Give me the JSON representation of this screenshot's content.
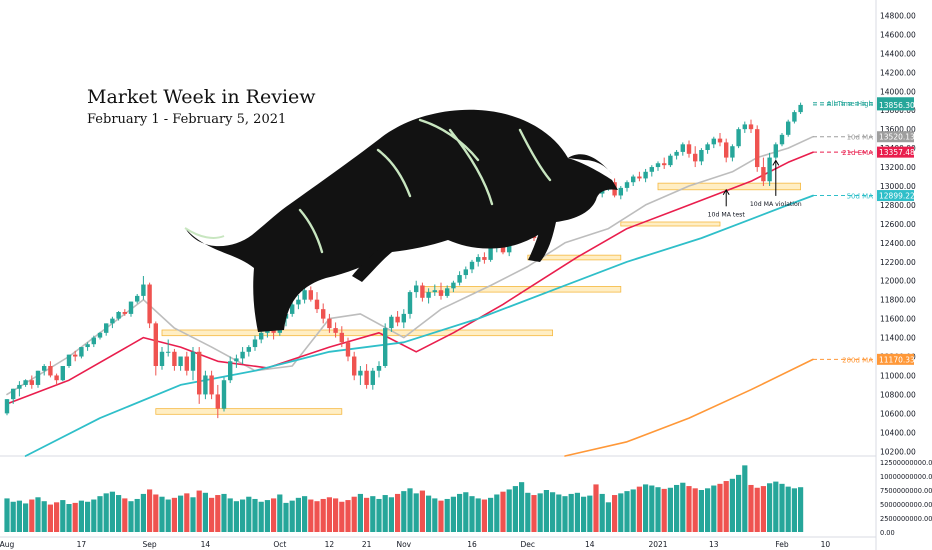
{
  "headline": {
    "title": "Market Week in Review",
    "subtitle": "February 1 - February 5, 2021"
  },
  "chart_data": {
    "type": "candlestick",
    "price_axis": {
      "ticks": [
        "14800.00",
        "14600.00",
        "14400.00",
        "14200.00",
        "14000.00",
        "13800.00",
        "13600.00",
        "13400.00",
        "13200.00",
        "13000.00",
        "12800.00",
        "12600.00",
        "12400.00",
        "12200.00",
        "12000.00",
        "11800.00",
        "11600.00",
        "11400.00",
        "11200.00",
        "11000.00",
        "10800.00",
        "10600.00",
        "10400.00",
        "10200.00"
      ],
      "range": [
        10150,
        14900
      ]
    },
    "volume_axis": {
      "ticks": [
        "12500000000.00",
        "10000000000.00",
        "7500000000.00",
        "5000000000.00",
        "2500000000.00",
        "0.00"
      ],
      "range": [
        0,
        12500000000
      ]
    },
    "time_axis": {
      "labels": [
        "Aug",
        "17",
        "Sep",
        "14",
        "Oct",
        "12",
        "21",
        "Nov",
        "16",
        "Dec",
        "14",
        "2021",
        "13",
        "Feb",
        "10"
      ],
      "label_index": [
        0,
        12,
        23,
        32,
        44,
        52,
        58,
        64,
        75,
        84,
        94,
        105,
        114,
        125,
        132
      ]
    },
    "markers": [
      {
        "label": "All Time High",
        "value": 13878.61,
        "value_text": "13878.61",
        "color": "#26a69a"
      },
      {
        "label": "",
        "value": 13856.3,
        "value_text": "13856.30",
        "color": "#26a69a"
      },
      {
        "label": "10d MA",
        "value": 13520.13,
        "value_text": "13520.13",
        "color": "#9e9e9e"
      },
      {
        "label": "21d EMA",
        "value": 13357.48,
        "value_text": "13357.48",
        "color": "#e91e4d"
      },
      {
        "label": "50d MA",
        "value": 12899.22,
        "value_text": "12899.22",
        "color": "#2fbfc9"
      },
      {
        "label": "200d MA",
        "value": 11170.33,
        "value_text": "11170.33",
        "color": "#ff9838"
      }
    ],
    "annotations": [
      "10d MA test",
      "10d MA violation"
    ],
    "zones": [
      {
        "from": 10590,
        "to": 10650,
        "start": 24,
        "end": 54
      },
      {
        "from": 11420,
        "to": 11480,
        "start": 25,
        "end": 88
      },
      {
        "from": 11880,
        "to": 11940,
        "start": 67,
        "end": 99
      },
      {
        "from": 12220,
        "to": 12270,
        "start": 84,
        "end": 99
      },
      {
        "from": 12580,
        "to": 12620,
        "start": 99,
        "end": 115
      },
      {
        "from": 12960,
        "to": 13030,
        "start": 105,
        "end": 128
      }
    ],
    "series": [
      {
        "name": "10d MA",
        "color": "#bdbdbd",
        "values": [
          [
            0,
            10800
          ],
          [
            10,
            11200
          ],
          [
            22,
            11800
          ],
          [
            27,
            11500
          ],
          [
            33,
            11300
          ],
          [
            40,
            11050
          ],
          [
            46,
            11100
          ],
          [
            52,
            11600
          ],
          [
            57,
            11650
          ],
          [
            64,
            11400
          ],
          [
            70,
            11700
          ],
          [
            78,
            11950
          ],
          [
            84,
            12150
          ],
          [
            90,
            12400
          ],
          [
            97,
            12550
          ],
          [
            103,
            12800
          ],
          [
            110,
            13000
          ],
          [
            117,
            13150
          ],
          [
            121,
            13300
          ],
          [
            126,
            13400
          ],
          [
            130,
            13520
          ]
        ]
      },
      {
        "name": "21d EMA",
        "color": "#e91e4d",
        "values": [
          [
            0,
            10700
          ],
          [
            10,
            10950
          ],
          [
            22,
            11400
          ],
          [
            28,
            11300
          ],
          [
            34,
            11150
          ],
          [
            42,
            11080
          ],
          [
            52,
            11300
          ],
          [
            60,
            11450
          ],
          [
            66,
            11250
          ],
          [
            72,
            11450
          ],
          [
            80,
            11750
          ],
          [
            86,
            12000
          ],
          [
            92,
            12250
          ],
          [
            100,
            12550
          ],
          [
            108,
            12750
          ],
          [
            114,
            12900
          ],
          [
            120,
            13050
          ],
          [
            126,
            13250
          ],
          [
            130,
            13357
          ]
        ]
      },
      {
        "name": "50d MA",
        "color": "#2fbfc9",
        "values": [
          [
            3,
            10150
          ],
          [
            15,
            10550
          ],
          [
            28,
            10900
          ],
          [
            40,
            11050
          ],
          [
            52,
            11250
          ],
          [
            64,
            11350
          ],
          [
            76,
            11600
          ],
          [
            88,
            11900
          ],
          [
            100,
            12200
          ],
          [
            112,
            12450
          ],
          [
            120,
            12650
          ],
          [
            126,
            12800
          ],
          [
            130,
            12899
          ]
        ]
      },
      {
        "name": "200d MA",
        "color": "#ff9838",
        "values": [
          [
            90,
            10150
          ],
          [
            100,
            10300
          ],
          [
            110,
            10550
          ],
          [
            120,
            10850
          ],
          [
            130,
            11170
          ]
        ]
      }
    ],
    "candles": [
      [
        0,
        10600,
        10750,
        10580,
        10750
      ],
      [
        1,
        10750,
        10860,
        10700,
        10860
      ],
      [
        2,
        10860,
        10940,
        10780,
        10900
      ],
      [
        3,
        10900,
        10960,
        10880,
        10950
      ],
      [
        4,
        10950,
        11000,
        10860,
        10900
      ],
      [
        5,
        10900,
        11050,
        10870,
        11050
      ],
      [
        6,
        11050,
        11120,
        11000,
        11100
      ],
      [
        7,
        11100,
        11150,
        10980,
        11000
      ],
      [
        8,
        11000,
        11020,
        10900,
        10950
      ],
      [
        9,
        10950,
        11100,
        10940,
        11100
      ],
      [
        10,
        11100,
        11220,
        11080,
        11220
      ],
      [
        11,
        11220,
        11260,
        11150,
        11200
      ],
      [
        12,
        11200,
        11300,
        11180,
        11300
      ],
      [
        13,
        11300,
        11350,
        11260,
        11330
      ],
      [
        14,
        11330,
        11420,
        11300,
        11400
      ],
      [
        15,
        11400,
        11460,
        11380,
        11450
      ],
      [
        16,
        11450,
        11550,
        11420,
        11550
      ],
      [
        17,
        11550,
        11620,
        11500,
        11600
      ],
      [
        18,
        11600,
        11680,
        11580,
        11670
      ],
      [
        19,
        11670,
        11700,
        11630,
        11650
      ],
      [
        20,
        11650,
        11780,
        11620,
        11780
      ],
      [
        21,
        11780,
        11860,
        11760,
        11840
      ],
      [
        22,
        11840,
        12050,
        11800,
        11960
      ],
      [
        23,
        11960,
        11980,
        11500,
        11550
      ],
      [
        24,
        11550,
        11570,
        11000,
        11100
      ],
      [
        25,
        11100,
        11300,
        11060,
        11250
      ],
      [
        26,
        11250,
        11380,
        11200,
        11250
      ],
      [
        27,
        11250,
        11280,
        11050,
        11100
      ],
      [
        28,
        11100,
        11200,
        11050,
        11200
      ],
      [
        29,
        11200,
        11250,
        11000,
        11050
      ],
      [
        30,
        11050,
        11300,
        10950,
        11250
      ],
      [
        31,
        11250,
        11300,
        10700,
        10800
      ],
      [
        32,
        10800,
        11050,
        10750,
        11000
      ],
      [
        33,
        11000,
        11050,
        10750,
        10800
      ],
      [
        34,
        10800,
        10900,
        10550,
        10650
      ],
      [
        35,
        10650,
        10980,
        10620,
        10950
      ],
      [
        36,
        10950,
        11200,
        10920,
        11150
      ],
      [
        37,
        11150,
        11220,
        11080,
        11180
      ],
      [
        38,
        11180,
        11300,
        11120,
        11250
      ],
      [
        39,
        11250,
        11320,
        11200,
        11300
      ],
      [
        40,
        11300,
        11420,
        11260,
        11380
      ],
      [
        41,
        11380,
        11480,
        11340,
        11450
      ],
      [
        42,
        11450,
        11560,
        11400,
        11500
      ],
      [
        43,
        11500,
        11540,
        11380,
        11450
      ],
      [
        44,
        11450,
        11650,
        11420,
        11600
      ],
      [
        45,
        11600,
        11700,
        11520,
        11650
      ],
      [
        46,
        11650,
        11800,
        11620,
        11750
      ],
      [
        47,
        11750,
        11850,
        11700,
        11800
      ],
      [
        48,
        11800,
        11950,
        11760,
        11900
      ],
      [
        49,
        11900,
        11940,
        11780,
        11800
      ],
      [
        50,
        11800,
        11880,
        11660,
        11700
      ],
      [
        51,
        11700,
        11760,
        11550,
        11600
      ],
      [
        52,
        11600,
        11650,
        11450,
        11500
      ],
      [
        53,
        11500,
        11560,
        11400,
        11450
      ],
      [
        54,
        11450,
        11520,
        11300,
        11350
      ],
      [
        55,
        11350,
        11400,
        11150,
        11200
      ],
      [
        56,
        11200,
        11250,
        10950,
        11000
      ],
      [
        57,
        11000,
        11100,
        10900,
        11050
      ],
      [
        58,
        11050,
        11120,
        10860,
        10900
      ],
      [
        59,
        10900,
        11080,
        10850,
        11050
      ],
      [
        60,
        11050,
        11150,
        10980,
        11100
      ],
      [
        61,
        11100,
        11550,
        11080,
        11500
      ],
      [
        62,
        11500,
        11640,
        11460,
        11620
      ],
      [
        63,
        11620,
        11680,
        11520,
        11560
      ],
      [
        64,
        11560,
        11700,
        11500,
        11650
      ],
      [
        65,
        11650,
        11900,
        11600,
        11880
      ],
      [
        66,
        11880,
        12000,
        11820,
        11950
      ],
      [
        67,
        11950,
        11980,
        11780,
        11820
      ],
      [
        68,
        11820,
        11920,
        11760,
        11880
      ],
      [
        69,
        11880,
        11960,
        11840,
        11900
      ],
      [
        70,
        11900,
        11980,
        11800,
        11840
      ],
      [
        71,
        11840,
        11950,
        11820,
        11920
      ],
      [
        72,
        11920,
        12000,
        11880,
        11980
      ],
      [
        73,
        11980,
        12100,
        11950,
        12060
      ],
      [
        74,
        12060,
        12150,
        12020,
        12120
      ],
      [
        75,
        12120,
        12220,
        12080,
        12200
      ],
      [
        76,
        12200,
        12280,
        12150,
        12250
      ],
      [
        77,
        12250,
        12300,
        12180,
        12220
      ],
      [
        78,
        12220,
        12380,
        12200,
        12350
      ],
      [
        79,
        12350,
        12420,
        12300,
        12400
      ],
      [
        80,
        12400,
        12440,
        12280,
        12300
      ],
      [
        81,
        12300,
        12460,
        12260,
        12450
      ],
      [
        82,
        12450,
        12520,
        12400,
        12500
      ],
      [
        83,
        12500,
        12560,
        12440,
        12520
      ],
      [
        84,
        12520,
        12600,
        12480,
        12560
      ],
      [
        85,
        12560,
        12580,
        12420,
        12450
      ],
      [
        86,
        12450,
        12620,
        12420,
        12600
      ],
      [
        87,
        12600,
        12660,
        12560,
        12650
      ],
      [
        88,
        12650,
        12720,
        12600,
        12700
      ],
      [
        89,
        12700,
        12780,
        12660,
        12750
      ],
      [
        90,
        12750,
        12800,
        12700,
        12780
      ],
      [
        91,
        12780,
        12860,
        12740,
        12840
      ],
      [
        92,
        12840,
        12900,
        12800,
        12880
      ],
      [
        93,
        12880,
        12960,
        12850,
        12940
      ],
      [
        94,
        12940,
        12990,
        12900,
        12960
      ],
      [
        95,
        12960,
        13000,
        12900,
        12920
      ],
      [
        96,
        12920,
        13020,
        12880,
        12980
      ],
      [
        97,
        12980,
        13060,
        12950,
        13040
      ],
      [
        98,
        13040,
        13080,
        12880,
        12900
      ],
      [
        99,
        12900,
        13000,
        12860,
        12980
      ],
      [
        100,
        12980,
        13060,
        12940,
        13040
      ],
      [
        101,
        13040,
        13120,
        13000,
        13100
      ],
      [
        102,
        13100,
        13150,
        13050,
        13080
      ],
      [
        103,
        13080,
        13180,
        13040,
        13150
      ],
      [
        104,
        13150,
        13220,
        13100,
        13200
      ],
      [
        105,
        13200,
        13260,
        13160,
        13240
      ],
      [
        106,
        13240,
        13300,
        13180,
        13220
      ],
      [
        107,
        13220,
        13340,
        13200,
        13320
      ],
      [
        108,
        13320,
        13380,
        13280,
        13360
      ],
      [
        109,
        13360,
        13460,
        13320,
        13440
      ],
      [
        110,
        13440,
        13480,
        13300,
        13340
      ],
      [
        111,
        13340,
        13420,
        13200,
        13260
      ],
      [
        112,
        13260,
        13400,
        13220,
        13380
      ],
      [
        113,
        13380,
        13460,
        13340,
        13440
      ],
      [
        114,
        13440,
        13520,
        13400,
        13500
      ],
      [
        115,
        13500,
        13560,
        13420,
        13460
      ],
      [
        116,
        13460,
        13500,
        13250,
        13300
      ],
      [
        117,
        13300,
        13440,
        13260,
        13420
      ],
      [
        118,
        13420,
        13620,
        13400,
        13600
      ],
      [
        119,
        13600,
        13680,
        13560,
        13650
      ],
      [
        120,
        13650,
        13700,
        13560,
        13600
      ],
      [
        121,
        13600,
        13640,
        13150,
        13200
      ],
      [
        122,
        13200,
        13300,
        13000,
        13050
      ],
      [
        123,
        13050,
        13350,
        13000,
        13300
      ],
      [
        124,
        13300,
        13460,
        13280,
        13440
      ],
      [
        125,
        13440,
        13560,
        13420,
        13540
      ],
      [
        126,
        13540,
        13700,
        13520,
        13680
      ],
      [
        127,
        13680,
        13800,
        13660,
        13780
      ],
      [
        128,
        13780,
        13880,
        13760,
        13856
      ]
    ],
    "volume_bil": [
      6.0,
      5.4,
      5.6,
      5.1,
      5.8,
      6.2,
      5.5,
      4.9,
      5.3,
      5.7,
      5.0,
      5.2,
      5.6,
      5.4,
      5.8,
      6.4,
      6.9,
      7.2,
      6.6,
      6.0,
      5.5,
      5.9,
      6.8,
      7.6,
      6.7,
      6.3,
      5.8,
      6.1,
      6.5,
      6.9,
      6.2,
      7.4,
      7.0,
      6.1,
      6.6,
      6.8,
      6.0,
      5.5,
      5.8,
      6.3,
      5.9,
      5.4,
      5.7,
      6.0,
      6.7,
      5.2,
      5.6,
      6.1,
      6.4,
      5.8,
      5.5,
      5.9,
      6.2,
      6.0,
      5.4,
      5.7,
      6.3,
      6.8,
      6.1,
      6.4,
      5.9,
      6.6,
      6.2,
      6.8,
      7.3,
      7.8,
      6.9,
      7.4,
      6.5,
      6.0,
      5.6,
      5.9,
      6.3,
      6.8,
      7.1,
      6.4,
      6.0,
      5.8,
      6.1,
      6.7,
      7.2,
      7.6,
      8.2,
      8.9,
      7.0,
      6.6,
      6.9,
      7.5,
      7.1,
      6.7,
      6.4,
      6.8,
      7.0,
      6.3,
      6.5,
      8.5,
      6.8,
      5.3,
      6.6,
      6.9,
      7.3,
      7.6,
      8.1,
      8.5,
      8.3,
      8.0,
      7.7,
      7.9,
      8.4,
      8.8,
      8.2,
      7.8,
      7.5,
      7.8,
      8.3,
      8.6,
      9.1,
      9.5,
      10.2,
      11.9,
      8.4,
      7.9,
      8.2,
      8.7,
      9.0,
      8.6,
      8.1,
      7.8,
      8.0
    ]
  }
}
